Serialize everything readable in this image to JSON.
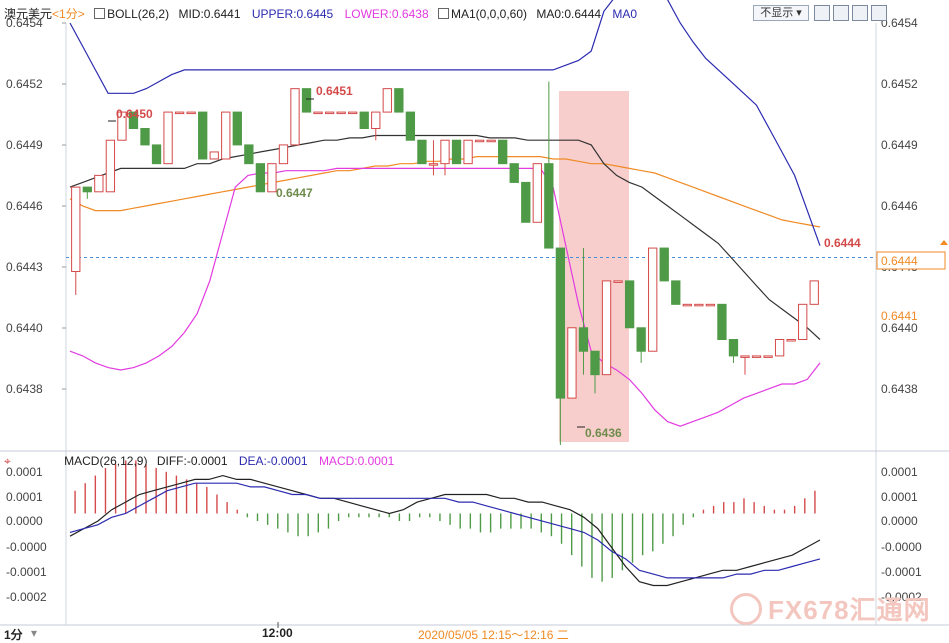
{
  "header": {
    "symbol": "澳元美元",
    "period_tag": "<1分>",
    "boll": "BOLL(26,2)",
    "mid": "MID:0.6441",
    "upper": "UPPER:0.6445",
    "lower": "LOWER:0.6438",
    "ma": "MA1(0,0,0,60)",
    "ma0": "MA0:0.6444",
    "ma0b": "MA0",
    "hide_label": "不显示",
    "window_icons": [
      "grid-icon",
      "list-icon",
      "restore-icon",
      "close-icon"
    ]
  },
  "macd_header": {
    "label": "MACD(26,12,9)",
    "diff": "DIFF:-0.0001",
    "dea": "DEA:-0.0001",
    "macd": "MACD:0.0001"
  },
  "footer": {
    "period": "1分",
    "time_label": "12:00",
    "range": "2020/05/05 12:15～12:16 二"
  },
  "watermark": "FX678汇通网",
  "colors": {
    "up": "#d44a4a",
    "down": "#4f9a47",
    "upper": "#2b2bb0",
    "lower": "#e23be0",
    "mid": "#333333",
    "ma": "#f08a24",
    "highlight": "#f7c6c3",
    "current": "#f08a24",
    "price_line": "#4a90d9"
  },
  "chart_data": [
    {
      "type": "candlestick",
      "title": "澳元美元 1分",
      "y_ticks": [
        "0.6454",
        "0.6452",
        "0.6449",
        "0.6446",
        "0.6443",
        "0.6440",
        "0.6438"
      ],
      "ylim": [
        0.6436,
        0.6454
      ],
      "annotations": {
        "high1": "0.6450",
        "high2": "0.6451",
        "low1": "0.6447",
        "low2": "0.6436",
        "last": "0.6444"
      },
      "price_tags": {
        "last": "0.6444",
        "mid": "0.6441"
      },
      "candles": [
        {
          "o": 0.64434,
          "h": 0.6447,
          "l": 0.64424,
          "c": 0.6447
        },
        {
          "o": 0.6447,
          "h": 0.6447,
          "l": 0.64465,
          "c": 0.64468
        },
        {
          "o": 0.64468,
          "h": 0.64475,
          "l": 0.64468,
          "c": 0.64475
        },
        {
          "o": 0.64468,
          "h": 0.6449,
          "l": 0.64468,
          "c": 0.6449
        },
        {
          "o": 0.6449,
          "h": 0.64502,
          "l": 0.6449,
          "c": 0.64502
        },
        {
          "o": 0.64502,
          "h": 0.64502,
          "l": 0.64495,
          "c": 0.64495
        },
        {
          "o": 0.64495,
          "h": 0.64495,
          "l": 0.64488,
          "c": 0.64488
        },
        {
          "o": 0.64488,
          "h": 0.64488,
          "l": 0.6448,
          "c": 0.6448
        },
        {
          "o": 0.6448,
          "h": 0.64502,
          "l": 0.6448,
          "c": 0.64502
        },
        {
          "o": 0.64502,
          "h": 0.64502,
          "l": 0.64502,
          "c": 0.64502
        },
        {
          "o": 0.64502,
          "h": 0.64502,
          "l": 0.64502,
          "c": 0.64502
        },
        {
          "o": 0.64502,
          "h": 0.64502,
          "l": 0.64482,
          "c": 0.64482
        },
        {
          "o": 0.64482,
          "h": 0.64485,
          "l": 0.64482,
          "c": 0.64485
        },
        {
          "o": 0.64482,
          "h": 0.64502,
          "l": 0.64482,
          "c": 0.64502
        },
        {
          "o": 0.64502,
          "h": 0.64502,
          "l": 0.64488,
          "c": 0.64488
        },
        {
          "o": 0.64488,
          "h": 0.64488,
          "l": 0.6448,
          "c": 0.6448
        },
        {
          "o": 0.6448,
          "h": 0.6448,
          "l": 0.64468,
          "c": 0.64468
        },
        {
          "o": 0.64468,
          "h": 0.6448,
          "l": 0.64468,
          "c": 0.6448
        },
        {
          "o": 0.6448,
          "h": 0.64488,
          "l": 0.6448,
          "c": 0.64488
        },
        {
          "o": 0.64488,
          "h": 0.64512,
          "l": 0.64488,
          "c": 0.64512
        },
        {
          "o": 0.64512,
          "h": 0.64512,
          "l": 0.64502,
          "c": 0.64502
        },
        {
          "o": 0.64502,
          "h": 0.64502,
          "l": 0.64502,
          "c": 0.64502
        },
        {
          "o": 0.64502,
          "h": 0.64502,
          "l": 0.64502,
          "c": 0.64502
        },
        {
          "o": 0.64502,
          "h": 0.64502,
          "l": 0.64502,
          "c": 0.64502
        },
        {
          "o": 0.64502,
          "h": 0.64502,
          "l": 0.64502,
          "c": 0.64502
        },
        {
          "o": 0.64502,
          "h": 0.64502,
          "l": 0.64495,
          "c": 0.64495
        },
        {
          "o": 0.64495,
          "h": 0.64502,
          "l": 0.6449,
          "c": 0.64502
        },
        {
          "o": 0.64502,
          "h": 0.64512,
          "l": 0.64502,
          "c": 0.64512
        },
        {
          "o": 0.64512,
          "h": 0.64512,
          "l": 0.64502,
          "c": 0.64502
        },
        {
          "o": 0.64502,
          "h": 0.64502,
          "l": 0.6449,
          "c": 0.6449
        },
        {
          "o": 0.6449,
          "h": 0.6449,
          "l": 0.6448,
          "c": 0.6448
        },
        {
          "o": 0.6448,
          "h": 0.6449,
          "l": 0.64475,
          "c": 0.6448
        },
        {
          "o": 0.6448,
          "h": 0.6449,
          "l": 0.64475,
          "c": 0.6449
        },
        {
          "o": 0.6449,
          "h": 0.6449,
          "l": 0.6448,
          "c": 0.6448
        },
        {
          "o": 0.6448,
          "h": 0.6449,
          "l": 0.6448,
          "c": 0.6449
        },
        {
          "o": 0.6449,
          "h": 0.6449,
          "l": 0.6449,
          "c": 0.6449
        },
        {
          "o": 0.6449,
          "h": 0.6449,
          "l": 0.6449,
          "c": 0.6449
        },
        {
          "o": 0.6449,
          "h": 0.6449,
          "l": 0.6448,
          "c": 0.6448
        },
        {
          "o": 0.6448,
          "h": 0.6448,
          "l": 0.64472,
          "c": 0.64472
        },
        {
          "o": 0.64472,
          "h": 0.64472,
          "l": 0.64455,
          "c": 0.64455
        },
        {
          "o": 0.64455,
          "h": 0.6448,
          "l": 0.64455,
          "c": 0.6448
        },
        {
          "o": 0.6448,
          "h": 0.64515,
          "l": 0.64444,
          "c": 0.64444
        },
        {
          "o": 0.64444,
          "h": 0.64444,
          "l": 0.6436,
          "c": 0.6438
        },
        {
          "o": 0.6438,
          "h": 0.6441,
          "l": 0.6438,
          "c": 0.6441
        },
        {
          "o": 0.6441,
          "h": 0.64444,
          "l": 0.6439,
          "c": 0.644
        },
        {
          "o": 0.644,
          "h": 0.644,
          "l": 0.64382,
          "c": 0.6439
        },
        {
          "o": 0.6439,
          "h": 0.6443,
          "l": 0.6439,
          "c": 0.6443
        },
        {
          "o": 0.6443,
          "h": 0.6443,
          "l": 0.6443,
          "c": 0.6443
        },
        {
          "o": 0.6443,
          "h": 0.6443,
          "l": 0.6441,
          "c": 0.6441
        },
        {
          "o": 0.6441,
          "h": 0.6441,
          "l": 0.64395,
          "c": 0.644
        },
        {
          "o": 0.644,
          "h": 0.64444,
          "l": 0.644,
          "c": 0.64444
        },
        {
          "o": 0.64444,
          "h": 0.64444,
          "l": 0.6443,
          "c": 0.6443
        },
        {
          "o": 0.6443,
          "h": 0.6443,
          "l": 0.6442,
          "c": 0.6442
        },
        {
          "o": 0.6442,
          "h": 0.6442,
          "l": 0.6442,
          "c": 0.6442
        },
        {
          "o": 0.6442,
          "h": 0.6442,
          "l": 0.6442,
          "c": 0.6442
        },
        {
          "o": 0.6442,
          "h": 0.6442,
          "l": 0.6442,
          "c": 0.6442
        },
        {
          "o": 0.6442,
          "h": 0.6442,
          "l": 0.64405,
          "c": 0.64405
        },
        {
          "o": 0.64405,
          "h": 0.64405,
          "l": 0.64395,
          "c": 0.64398
        },
        {
          "o": 0.64398,
          "h": 0.64398,
          "l": 0.6439,
          "c": 0.64398
        },
        {
          "o": 0.64398,
          "h": 0.64398,
          "l": 0.64398,
          "c": 0.64398
        },
        {
          "o": 0.64398,
          "h": 0.64398,
          "l": 0.64398,
          "c": 0.64398
        },
        {
          "o": 0.64398,
          "h": 0.64405,
          "l": 0.64398,
          "c": 0.64405
        },
        {
          "o": 0.64405,
          "h": 0.64405,
          "l": 0.64405,
          "c": 0.64405
        },
        {
          "o": 0.64405,
          "h": 0.6442,
          "l": 0.64405,
          "c": 0.6442
        },
        {
          "o": 0.6442,
          "h": 0.6443,
          "l": 0.6442,
          "c": 0.6443
        }
      ],
      "boll_upper": [
        0.6454,
        0.6453,
        0.6452,
        0.6451,
        0.6451,
        0.6451,
        0.64512,
        0.64515,
        0.64518,
        0.6452,
        0.6452,
        0.6452,
        0.6452,
        0.6452,
        0.6452,
        0.6452,
        0.6452,
        0.6452,
        0.6452,
        0.6452,
        0.6452,
        0.6452,
        0.6452,
        0.6452,
        0.6452,
        0.6452,
        0.6452,
        0.6452,
        0.6452,
        0.6452,
        0.6452,
        0.6452,
        0.6452,
        0.6452,
        0.6452,
        0.6452,
        0.6452,
        0.6452,
        0.6452,
        0.64522,
        0.64524,
        0.64528,
        0.64545,
        0.64552,
        0.64556,
        0.64558,
        0.64555,
        0.6455,
        0.6454,
        0.64532,
        0.64525,
        0.6452,
        0.64515,
        0.6451,
        0.64505,
        0.64495,
        0.64485,
        0.64475,
        0.6446,
        0.64445
      ],
      "boll_mid": [
        0.6447,
        0.64472,
        0.64474,
        0.64476,
        0.64478,
        0.64478,
        0.64478,
        0.64478,
        0.64478,
        0.64478,
        0.6448,
        0.6448,
        0.64482,
        0.64483,
        0.64484,
        0.64485,
        0.64486,
        0.64487,
        0.64488,
        0.64489,
        0.6449,
        0.6449,
        0.64491,
        0.64491,
        0.64492,
        0.64492,
        0.64492,
        0.64492,
        0.64492,
        0.64492,
        0.64492,
        0.64492,
        0.64492,
        0.64491,
        0.64491,
        0.64491,
        0.6449,
        0.6449,
        0.6449,
        0.6449,
        0.6449,
        0.64488,
        0.6448,
        0.64475,
        0.64472,
        0.6447,
        0.64466,
        0.64462,
        0.64458,
        0.64454,
        0.6445,
        0.64446,
        0.6444,
        0.64434,
        0.64428,
        0.64422,
        0.64418,
        0.64414,
        0.6441,
        0.64405
      ],
      "boll_lower": [
        0.644,
        0.64398,
        0.64395,
        0.64393,
        0.64392,
        0.64393,
        0.64395,
        0.64398,
        0.64402,
        0.64408,
        0.64416,
        0.6443,
        0.6445,
        0.6447,
        0.64475,
        0.64476,
        0.64476,
        0.64477,
        0.64477,
        0.64477,
        0.64477,
        0.64478,
        0.64478,
        0.64478,
        0.64478,
        0.64478,
        0.64478,
        0.64478,
        0.64478,
        0.64478,
        0.64478,
        0.64478,
        0.64478,
        0.64478,
        0.64478,
        0.64478,
        0.64478,
        0.64478,
        0.6447,
        0.64445,
        0.6442,
        0.644,
        0.64395,
        0.64392,
        0.64388,
        0.64382,
        0.64375,
        0.6437,
        0.64368,
        0.6437,
        0.64372,
        0.64374,
        0.64377,
        0.6438,
        0.64382,
        0.64384,
        0.64386,
        0.64386,
        0.64388,
        0.64395
      ],
      "ma60": [
        0.64465,
        0.64462,
        0.6446,
        0.6446,
        0.6446,
        0.64461,
        0.64462,
        0.64463,
        0.64464,
        0.64465,
        0.64466,
        0.64467,
        0.64468,
        0.64469,
        0.6447,
        0.64471,
        0.64472,
        0.64473,
        0.64474,
        0.64475,
        0.64476,
        0.64477,
        0.64477,
        0.64478,
        0.64479,
        0.64479,
        0.6448,
        0.6448,
        0.64481,
        0.64481,
        0.64482,
        0.64482,
        0.64483,
        0.64483,
        0.64483,
        0.64483,
        0.64483,
        0.64483,
        0.64482,
        0.64482,
        0.64481,
        0.6448,
        0.6448,
        0.64479,
        0.64478,
        0.64477,
        0.64476,
        0.64474,
        0.64472,
        0.6447,
        0.64468,
        0.64466,
        0.64464,
        0.64462,
        0.6446,
        0.64458,
        0.64456,
        0.64455,
        0.64454,
        0.64453
      ]
    },
    {
      "type": "bar",
      "title": "MACD(26,12,9)",
      "y_ticks": [
        "0.0001",
        "0.0001",
        "0.0000",
        "-0.0000",
        "-0.0001",
        "-0.0002"
      ],
      "ylim": [
        -0.00026,
        0.00012
      ],
      "macd_hist": [
        6e-05,
        8e-05,
        0.0001,
        0.00012,
        0.00013,
        0.00014,
        0.00014,
        0.00013,
        0.00012,
        0.00011,
        0.0001,
        9e-05,
        8e-05,
        7e-05,
        5e-05,
        3e-05,
        1e-05,
        -1e-05,
        -2e-05,
        -3e-05,
        -4e-05,
        -5e-05,
        -6e-05,
        -6e-05,
        -5e-05,
        -4e-05,
        -2e-05,
        -1e-05,
        -1e-05,
        -1e-05,
        -1e-05,
        -1e-05,
        -2e-05,
        -2e-05,
        -1e-05,
        -1e-05,
        -2e-05,
        -3e-05,
        -4e-05,
        -4e-05,
        -5e-05,
        -5e-05,
        -4e-05,
        -4e-05,
        -4e-05,
        -4e-05,
        -5e-05,
        -6e-05,
        -8e-05,
        -0.00011,
        -0.00014,
        -0.00017,
        -0.00018,
        -0.00017,
        -0.00015,
        -0.00013,
        -0.00011,
        -0.0001,
        -8e-05,
        -6e-05,
        -3e-05,
        -1e-05,
        1e-05,
        2e-05,
        3e-05,
        3e-05,
        4e-05,
        3e-05,
        2e-05,
        1e-05,
        1e-05,
        2e-05,
        4e-05,
        6e-05
      ],
      "diff": [
        -6e-05,
        -4e-05,
        -2e-05,
        1e-05,
        3e-05,
        5e-05,
        6e-05,
        7e-05,
        8e-05,
        9e-05,
        9e-05,
        0.0001,
        9e-05,
        9e-05,
        8e-05,
        7e-05,
        6e-05,
        5e-05,
        4e-05,
        4e-05,
        3e-05,
        2e-05,
        1e-05,
        0.0,
        1e-05,
        3e-05,
        4e-05,
        5e-05,
        5e-05,
        5e-05,
        5e-05,
        4e-05,
        4e-05,
        3e-05,
        3e-05,
        2e-05,
        1e-05,
        -1e-05,
        -4e-05,
        -9e-05,
        -0.00014,
        -0.00018,
        -0.00019,
        -0.00019,
        -0.00018,
        -0.00017,
        -0.00016,
        -0.00015,
        -0.00015,
        -0.00014,
        -0.00013,
        -0.00012,
        -0.00011,
        -9e-05,
        -7e-05
      ],
      "dea": [
        -5e-05,
        -4e-05,
        -3e-05,
        -1e-05,
        0.0,
        2e-05,
        4e-05,
        6e-05,
        7e-05,
        8e-05,
        8e-05,
        8e-05,
        8e-05,
        7e-05,
        7e-05,
        6e-05,
        5e-05,
        5e-05,
        4e-05,
        4e-05,
        4e-05,
        4e-05,
        4e-05,
        4e-05,
        4e-05,
        4e-05,
        4e-05,
        4e-05,
        3e-05,
        3e-05,
        2e-05,
        1e-05,
        0.0,
        -1e-05,
        -2e-05,
        -3e-05,
        -4e-05,
        -5e-05,
        -7e-05,
        -0.0001,
        -0.00012,
        -0.00015,
        -0.00016,
        -0.00017,
        -0.00017,
        -0.00017,
        -0.00017,
        -0.00017,
        -0.00016,
        -0.00016,
        -0.00015,
        -0.00015,
        -0.00014,
        -0.00013,
        -0.00012
      ]
    }
  ]
}
